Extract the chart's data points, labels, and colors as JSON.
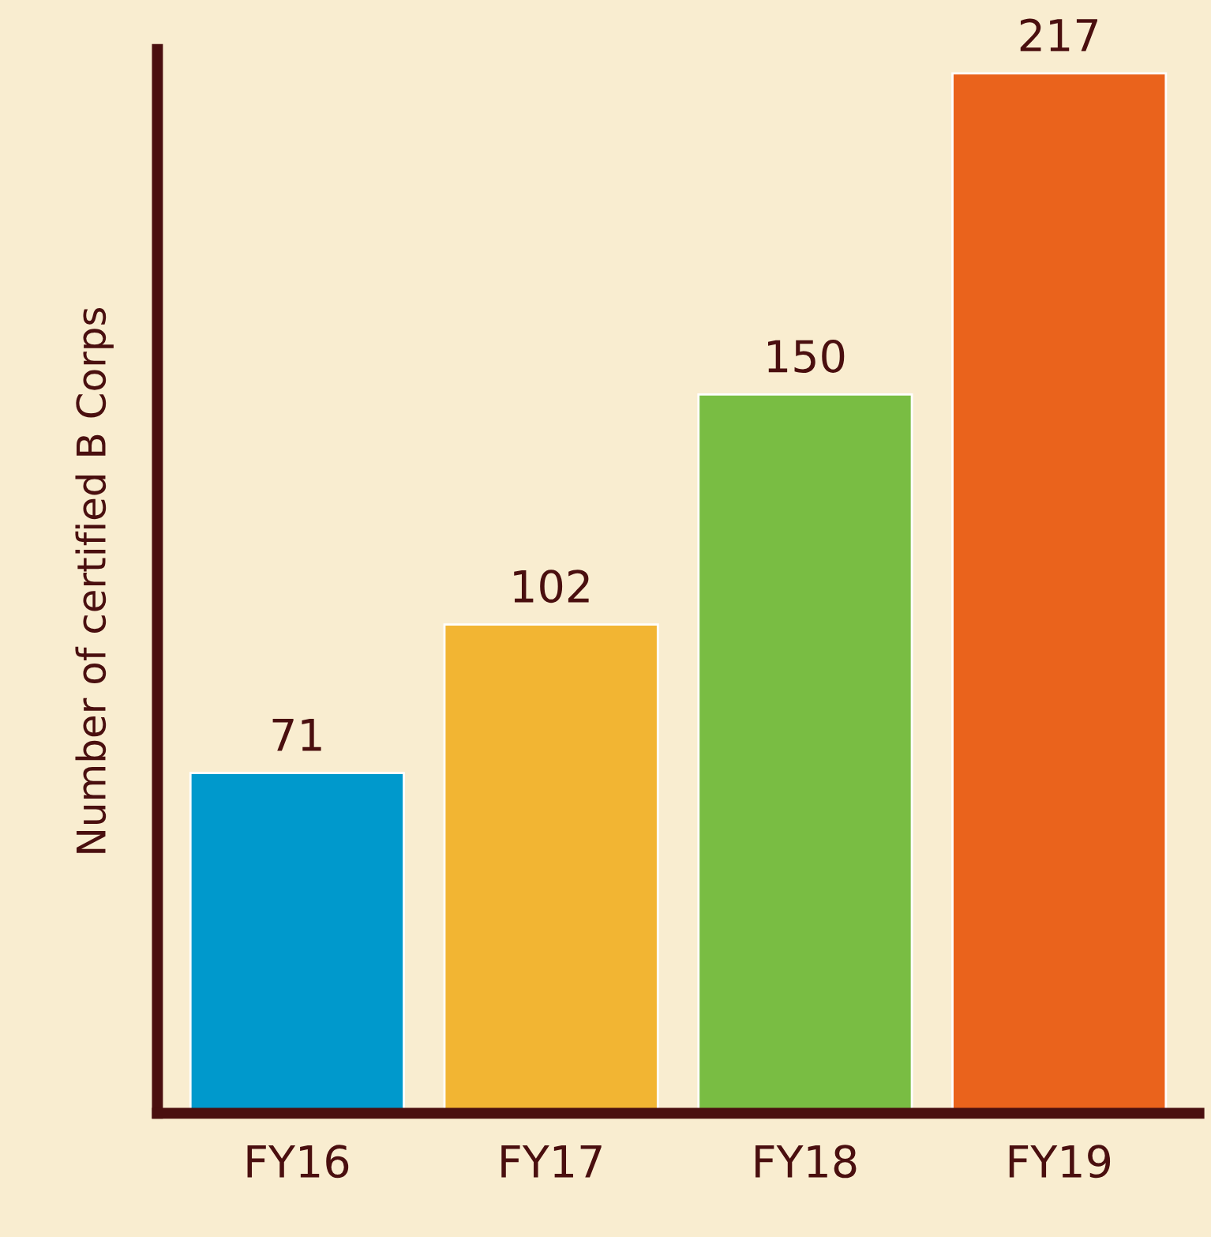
{
  "chart_data": {
    "type": "bar",
    "ylabel": "Number of certified B Corps",
    "categories": [
      "FY16",
      "FY17",
      "FY18",
      "FY19"
    ],
    "values": [
      71,
      102,
      150,
      217
    ],
    "colors": [
      "#0099cc",
      "#f2b533",
      "#79bd43",
      "#ea631c"
    ],
    "ylim": [
      0,
      222
    ],
    "data_labels": true,
    "tick_labels": "x",
    "grid": false,
    "legend": false
  }
}
